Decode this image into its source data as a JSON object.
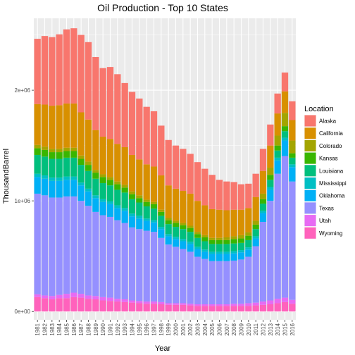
{
  "chart_data": {
    "type": "bar",
    "stacked": true,
    "title": "Oil Production - Top 10 States",
    "xlabel": "Year",
    "ylabel": "ThousandBarrel",
    "ylim": [
      -75000,
      2650000
    ],
    "y_ticks": [
      0,
      1000000,
      2000000
    ],
    "y_tick_labels": [
      "0e+00",
      "1e+06",
      "2e+06"
    ],
    "grid": true,
    "legend_title": "Location",
    "legend_position": "right",
    "categories": [
      "1981",
      "1982",
      "1983",
      "1984",
      "1985",
      "1986",
      "1987",
      "1988",
      "1989",
      "1990",
      "1991",
      "1992",
      "1993",
      "1994",
      "1995",
      "1996",
      "1997",
      "1998",
      "1999",
      "2000",
      "2001",
      "2002",
      "2003",
      "2004",
      "2005",
      "2006",
      "2007",
      "2008",
      "2009",
      "2010",
      "2011",
      "2012",
      "2013",
      "2014",
      "2015",
      "2016"
    ],
    "stack_order_bottom_to_top": [
      "Wyoming",
      "Utah",
      "Texas",
      "Oklahoma",
      "Mississippi",
      "Louisiana",
      "Kansas",
      "Colorado",
      "California",
      "Alaska"
    ],
    "series": [
      {
        "name": "Alaska",
        "color": "#F8766D",
        "values": [
          590000,
          620000,
          620000,
          640000,
          670000,
          680000,
          700000,
          700000,
          660000,
          620000,
          650000,
          630000,
          580000,
          570000,
          550000,
          520000,
          500000,
          450000,
          410000,
          390000,
          380000,
          360000,
          350000,
          330000,
          310000,
          270000,
          260000,
          250000,
          230000,
          220000,
          210000,
          200000,
          190000,
          180000,
          170000,
          170000
        ]
      },
      {
        "name": "California",
        "color": "#D89000",
        "values": [
          370000,
          380000,
          390000,
          395000,
          400000,
          400000,
          390000,
          380000,
          360000,
          340000,
          345000,
          340000,
          340000,
          330000,
          325000,
          320000,
          320000,
          310000,
          295000,
          290000,
          290000,
          290000,
          280000,
          270000,
          260000,
          255000,
          245000,
          240000,
          230000,
          220000,
          215000,
          205000,
          200000,
          200000,
          195000,
          185000
        ]
      },
      {
        "name": "Colorado",
        "color": "#A3A500",
        "values": [
          30000,
          30000,
          30000,
          30000,
          30000,
          30000,
          30000,
          30000,
          25000,
          25000,
          25000,
          25000,
          25000,
          25000,
          25000,
          20000,
          20000,
          20000,
          20000,
          20000,
          20000,
          20000,
          20000,
          20000,
          20000,
          20000,
          25000,
          25000,
          30000,
          30000,
          35000,
          50000,
          65000,
          90000,
          120000,
          115000
        ]
      },
      {
        "name": "Kansas",
        "color": "#39B600",
        "values": [
          60000,
          60000,
          60000,
          60000,
          60000,
          60000,
          55000,
          55000,
          55000,
          55000,
          50000,
          50000,
          45000,
          45000,
          40000,
          40000,
          40000,
          35000,
          35000,
          35000,
          35000,
          35000,
          35000,
          35000,
          35000,
          35000,
          35000,
          40000,
          40000,
          40000,
          40000,
          40000,
          45000,
          45000,
          45000,
          40000
        ]
      },
      {
        "name": "Louisiana",
        "color": "#00BF7D",
        "values": [
          170000,
          170000,
          170000,
          170000,
          170000,
          170000,
          160000,
          160000,
          150000,
          145000,
          145000,
          140000,
          140000,
          130000,
          120000,
          110000,
          105000,
          100000,
          90000,
          90000,
          90000,
          90000,
          80000,
          75000,
          70000,
          70000,
          70000,
          70000,
          65000,
          65000,
          65000,
          65000,
          65000,
          65000,
          60000,
          60000
        ]
      },
      {
        "name": "Mississippi",
        "color": "#00BFC4",
        "values": [
          30000,
          30000,
          30000,
          30000,
          30000,
          30000,
          25000,
          25000,
          25000,
          25000,
          25000,
          25000,
          25000,
          25000,
          25000,
          20000,
          20000,
          20000,
          20000,
          20000,
          20000,
          20000,
          20000,
          20000,
          20000,
          20000,
          20000,
          20000,
          20000,
          20000,
          20000,
          20000,
          25000,
          25000,
          25000,
          25000
        ]
      },
      {
        "name": "Oklahoma",
        "color": "#00B0F6",
        "values": [
          150000,
          150000,
          150000,
          150000,
          150000,
          150000,
          140000,
          130000,
          125000,
          120000,
          115000,
          110000,
          110000,
          100000,
          95000,
          90000,
          85000,
          80000,
          75000,
          70000,
          70000,
          70000,
          70000,
          65000,
          65000,
          65000,
          65000,
          65000,
          65000,
          65000,
          70000,
          80000,
          100000,
          120000,
          140000,
          130000
        ]
      },
      {
        "name": "Texas",
        "color": "#9590FF",
        "values": [
          910000,
          905000,
          890000,
          880000,
          880000,
          870000,
          840000,
          810000,
          760000,
          740000,
          730000,
          710000,
          690000,
          660000,
          650000,
          640000,
          630000,
          580000,
          530000,
          510000,
          490000,
          470000,
          430000,
          410000,
          390000,
          390000,
          390000,
          390000,
          400000,
          420000,
          510000,
          720000,
          900000,
          1130000,
          1280000,
          1070000
        ]
      },
      {
        "name": "Utah",
        "color": "#E76BF3",
        "values": [
          25000,
          25000,
          30000,
          30000,
          40000,
          40000,
          35000,
          30000,
          30000,
          30000,
          30000,
          25000,
          25000,
          20000,
          20000,
          20000,
          20000,
          20000,
          15000,
          15000,
          15000,
          15000,
          15000,
          15000,
          15000,
          15000,
          15000,
          20000,
          20000,
          25000,
          25000,
          30000,
          35000,
          40000,
          40000,
          35000
        ]
      },
      {
        "name": "Wyoming",
        "color": "#FF62BC",
        "values": [
          130000,
          120000,
          110000,
          120000,
          120000,
          130000,
          125000,
          115000,
          110000,
          100000,
          95000,
          90000,
          85000,
          80000,
          75000,
          70000,
          70000,
          65000,
          60000,
          60000,
          60000,
          55000,
          50000,
          50000,
          50000,
          50000,
          50000,
          50000,
          50000,
          50000,
          55000,
          60000,
          65000,
          75000,
          85000,
          70000
        ]
      }
    ]
  }
}
